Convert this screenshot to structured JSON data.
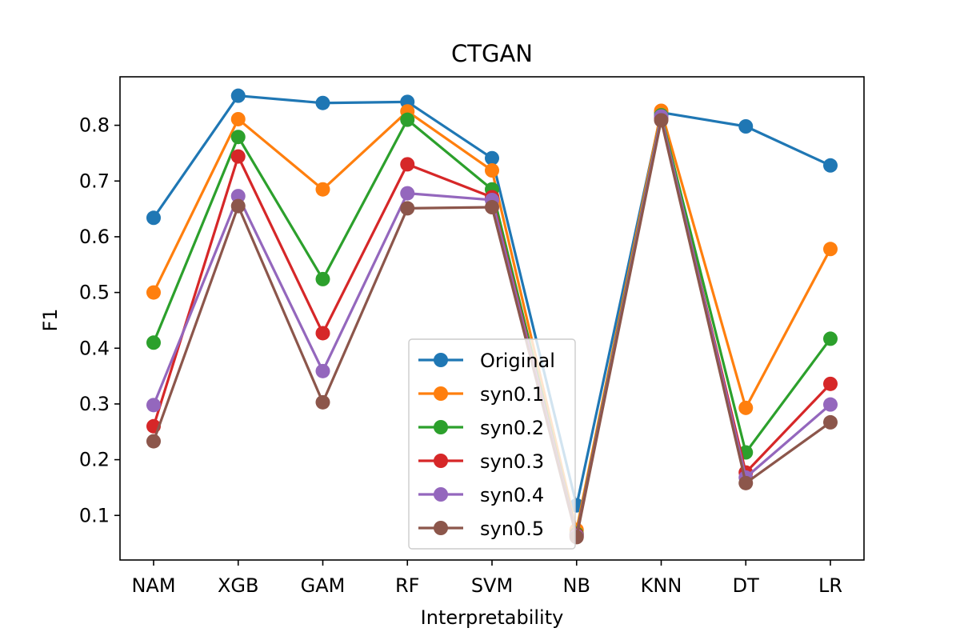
{
  "chart_data": {
    "type": "line",
    "title": "CTGAN",
    "xlabel": "Interpretability",
    "ylabel": "F1",
    "categories": [
      "NAM",
      "XGB",
      "GAM",
      "RF",
      "SVM",
      "NB",
      "KNN",
      "DT",
      "LR"
    ],
    "ylim": [
      0.02,
      0.887
    ],
    "yticks": [
      0.1,
      0.2,
      0.3,
      0.4,
      0.5,
      0.6,
      0.7,
      0.8
    ],
    "grid": false,
    "legend_position": "lower center",
    "series": [
      {
        "name": "Original",
        "color": "#1f77b4",
        "values": [
          0.634,
          0.853,
          0.84,
          0.842,
          0.741,
          0.118,
          0.823,
          0.798,
          0.728
        ]
      },
      {
        "name": "syn0.1",
        "color": "#ff7f0e",
        "values": [
          0.5,
          0.811,
          0.685,
          0.825,
          0.719,
          0.074,
          0.826,
          0.293,
          0.578
        ]
      },
      {
        "name": "syn0.2",
        "color": "#2ca02c",
        "values": [
          0.41,
          0.779,
          0.524,
          0.81,
          0.685,
          0.067,
          0.818,
          0.213,
          0.417
        ]
      },
      {
        "name": "syn0.3",
        "color": "#d62728",
        "values": [
          0.26,
          0.744,
          0.427,
          0.73,
          0.671,
          0.065,
          0.813,
          0.177,
          0.336
        ]
      },
      {
        "name": "syn0.4",
        "color": "#9467bd",
        "values": [
          0.298,
          0.673,
          0.359,
          0.678,
          0.666,
          0.063,
          0.816,
          0.168,
          0.299
        ]
      },
      {
        "name": "syn0.5",
        "color": "#8c564b",
        "values": [
          0.233,
          0.655,
          0.303,
          0.651,
          0.653,
          0.061,
          0.809,
          0.158,
          0.267
        ]
      }
    ]
  }
}
